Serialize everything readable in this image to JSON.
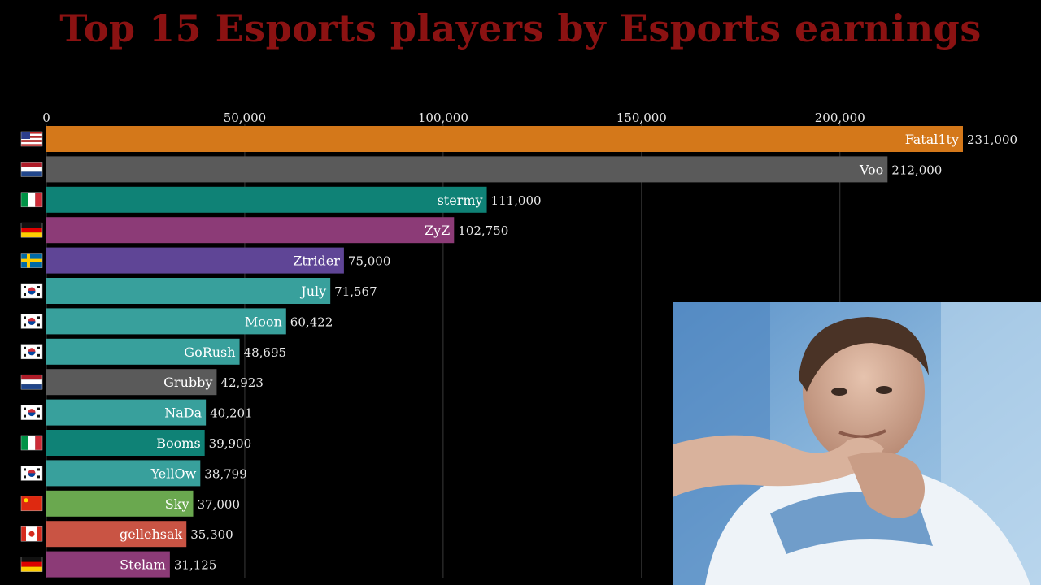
{
  "page": {
    "title": "Top 15 Esports players by Esports earnings"
  },
  "chart_data": {
    "type": "bar",
    "orientation": "horizontal",
    "title": "Top 15 Esports players by Esports earnings",
    "xlim": [
      0,
      231000
    ],
    "grid": true,
    "x_ticks": [
      "0",
      "50,000",
      "100,000",
      "150,000",
      "200,000"
    ],
    "x_tick_values": [
      0,
      50000,
      100000,
      150000,
      200000
    ],
    "bars": [
      {
        "name": "Fatal1ty",
        "value": 231000,
        "value_label": "231,000",
        "color": "#d4781a",
        "flag": "us-flag-icon"
      },
      {
        "name": "Voo",
        "value": 212000,
        "value_label": "212,000",
        "color": "#5a5a5a",
        "flag": "netherlands-flag-icon"
      },
      {
        "name": "stermy",
        "value": 111000,
        "value_label": "111,000",
        "color": "#0f8276",
        "flag": "italy-flag-icon"
      },
      {
        "name": "ZyZ",
        "value": 102750,
        "value_label": "102,750",
        "color": "#8c3b77",
        "flag": "germany-flag-icon"
      },
      {
        "name": "Ztrider",
        "value": 75000,
        "value_label": "75,000",
        "color": "#5f4596",
        "flag": "sweden-flag-icon"
      },
      {
        "name": "July",
        "value": 71567,
        "value_label": "71,567",
        "color": "#38a09c",
        "flag": "korea-flag-icon"
      },
      {
        "name": "Moon",
        "value": 60422,
        "value_label": "60,422",
        "color": "#38a09c",
        "flag": "korea-flag-icon"
      },
      {
        "name": "GoRush",
        "value": 48695,
        "value_label": "48,695",
        "color": "#38a09c",
        "flag": "korea-flag-icon"
      },
      {
        "name": "Grubby",
        "value": 42923,
        "value_label": "42,923",
        "color": "#5a5a5a",
        "flag": "netherlands-flag-icon"
      },
      {
        "name": "NaDa",
        "value": 40201,
        "value_label": "40,201",
        "color": "#38a09c",
        "flag": "korea-flag-icon"
      },
      {
        "name": "Booms",
        "value": 39900,
        "value_label": "39,900",
        "color": "#0f8276",
        "flag": "italy-flag-icon"
      },
      {
        "name": "YellOw",
        "value": 38799,
        "value_label": "38,799",
        "color": "#38a09c",
        "flag": "korea-flag-icon"
      },
      {
        "name": "Sky",
        "value": 37000,
        "value_label": "37,000",
        "color": "#6aa84f",
        "flag": "china-flag-icon"
      },
      {
        "name": "gellehsak",
        "value": 35300,
        "value_label": "35,300",
        "color": "#c95444",
        "flag": "canada-flag-icon"
      },
      {
        "name": "Stelam",
        "value": 31125,
        "value_label": "31,125",
        "color": "#8c3b77",
        "flag": "germany-flag-icon"
      }
    ]
  },
  "overlay": {
    "photo_icon": "player-photo-icon"
  }
}
